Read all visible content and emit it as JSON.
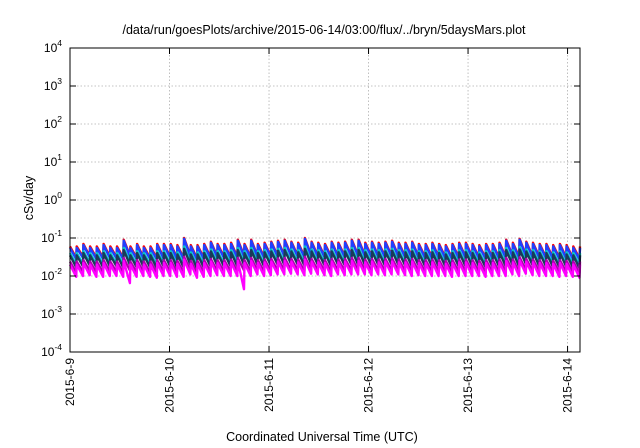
{
  "chart_data": {
    "type": "line",
    "title": "/data/run/goesPlots/archive/2015-06-14/03:00/flux/../bryn/5daysMars.plot",
    "xlabel": "Coordinated Universal Time (UTC)",
    "ylabel": "cSv/day",
    "x_range": [
      "2015-06-09T00:00",
      "2015-06-14T03:00"
    ],
    "x_ticks": [
      "2015-6-9",
      "2015-6-10",
      "2015-6-11",
      "2015-6-12",
      "2015-6-13",
      "2015-6-14"
    ],
    "y_scale": "log",
    "ylim": [
      0.0001,
      10000
    ],
    "y_ticks": [
      {
        "base": "10",
        "exp": "-4",
        "value": 0.0001
      },
      {
        "base": "10",
        "exp": "-3",
        "value": 0.001
      },
      {
        "base": "10",
        "exp": "-2",
        "value": 0.01
      },
      {
        "base": "10",
        "exp": "-1",
        "value": 0.1
      },
      {
        "base": "10",
        "exp": "0",
        "value": 1
      },
      {
        "base": "10",
        "exp": "1",
        "value": 10
      },
      {
        "base": "10",
        "exp": "2",
        "value": 100
      },
      {
        "base": "10",
        "exp": "3",
        "value": 1000
      },
      {
        "base": "10",
        "exp": "4",
        "value": 10000
      }
    ],
    "grid": true,
    "legend": "none",
    "series": [
      {
        "color": "#ff0000",
        "peaks": [
          0.06,
          0.06,
          0.07,
          0.06,
          0.06,
          0.07,
          0.06,
          0.06,
          0.09,
          0.06,
          0.07,
          0.06,
          0.06,
          0.07,
          0.07,
          0.07,
          0.065,
          0.1,
          0.065,
          0.065,
          0.07,
          0.08,
          0.07,
          0.07,
          0.075,
          0.09,
          0.07,
          0.09,
          0.07,
          0.075,
          0.08,
          0.085,
          0.09,
          0.08,
          0.075,
          0.1,
          0.08,
          0.075,
          0.07,
          0.08,
          0.075,
          0.08,
          0.09,
          0.09,
          0.075,
          0.08,
          0.075,
          0.08,
          0.085,
          0.075,
          0.075,
          0.08,
          0.07,
          0.07,
          0.075,
          0.07,
          0.065,
          0.07,
          0.075,
          0.075,
          0.07,
          0.065,
          0.07,
          0.07,
          0.075,
          0.09,
          0.075,
          0.095,
          0.08,
          0.075,
          0.07,
          0.07,
          0.065,
          0.07,
          0.065,
          0.06
        ],
        "troughs": [
          0.03,
          0.032,
          0.033,
          0.03,
          0.03,
          0.032,
          0.031,
          0.03,
          0.035,
          0.03,
          0.031,
          0.03,
          0.029,
          0.031,
          0.032,
          0.03,
          0.03,
          0.035,
          0.029,
          0.03,
          0.031,
          0.033,
          0.032,
          0.031,
          0.032,
          0.035,
          0.031,
          0.034,
          0.032,
          0.033,
          0.034,
          0.035,
          0.036,
          0.034,
          0.033,
          0.036,
          0.034,
          0.033,
          0.032,
          0.034,
          0.033,
          0.034,
          0.035,
          0.035,
          0.033,
          0.034,
          0.033,
          0.034,
          0.034,
          0.033,
          0.032,
          0.033,
          0.031,
          0.031,
          0.032,
          0.031,
          0.03,
          0.031,
          0.032,
          0.032,
          0.031,
          0.03,
          0.031,
          0.031,
          0.032,
          0.035,
          0.032,
          0.036,
          0.033,
          0.032,
          0.031,
          0.031,
          0.03,
          0.031,
          0.03,
          0.029
        ]
      },
      {
        "color": "#2040ff",
        "peaks": [
          0.055,
          0.055,
          0.065,
          0.055,
          0.055,
          0.065,
          0.055,
          0.055,
          0.085,
          0.055,
          0.065,
          0.055,
          0.055,
          0.065,
          0.065,
          0.065,
          0.06,
          0.095,
          0.06,
          0.06,
          0.065,
          0.075,
          0.065,
          0.065,
          0.07,
          0.085,
          0.065,
          0.085,
          0.065,
          0.07,
          0.075,
          0.08,
          0.085,
          0.075,
          0.07,
          0.095,
          0.075,
          0.07,
          0.065,
          0.075,
          0.07,
          0.075,
          0.085,
          0.085,
          0.07,
          0.075,
          0.07,
          0.075,
          0.08,
          0.07,
          0.07,
          0.075,
          0.065,
          0.065,
          0.07,
          0.065,
          0.06,
          0.065,
          0.07,
          0.07,
          0.065,
          0.06,
          0.065,
          0.065,
          0.07,
          0.085,
          0.07,
          0.09,
          0.075,
          0.07,
          0.065,
          0.065,
          0.06,
          0.065,
          0.06,
          0.055
        ],
        "troughs": [
          0.028,
          0.03,
          0.031,
          0.028,
          0.028,
          0.03,
          0.029,
          0.028,
          0.033,
          0.028,
          0.029,
          0.028,
          0.027,
          0.029,
          0.03,
          0.028,
          0.028,
          0.033,
          0.027,
          0.028,
          0.029,
          0.031,
          0.03,
          0.029,
          0.03,
          0.033,
          0.029,
          0.032,
          0.03,
          0.031,
          0.032,
          0.033,
          0.034,
          0.032,
          0.031,
          0.034,
          0.032,
          0.031,
          0.03,
          0.032,
          0.031,
          0.032,
          0.033,
          0.033,
          0.031,
          0.032,
          0.031,
          0.032,
          0.032,
          0.031,
          0.03,
          0.031,
          0.029,
          0.029,
          0.03,
          0.029,
          0.028,
          0.029,
          0.03,
          0.03,
          0.029,
          0.028,
          0.029,
          0.029,
          0.03,
          0.033,
          0.03,
          0.034,
          0.031,
          0.03,
          0.029,
          0.029,
          0.028,
          0.029,
          0.028,
          0.027
        ]
      },
      {
        "color": "#00c8c8",
        "peaks": [
          0.04,
          0.04,
          0.045,
          0.04,
          0.04,
          0.045,
          0.04,
          0.04,
          0.055,
          0.04,
          0.045,
          0.04,
          0.04,
          0.045,
          0.045,
          0.045,
          0.042,
          0.06,
          0.042,
          0.042,
          0.045,
          0.05,
          0.045,
          0.045,
          0.048,
          0.055,
          0.045,
          0.055,
          0.045,
          0.048,
          0.05,
          0.052,
          0.055,
          0.05,
          0.048,
          0.06,
          0.05,
          0.048,
          0.045,
          0.05,
          0.048,
          0.05,
          0.055,
          0.055,
          0.048,
          0.05,
          0.048,
          0.05,
          0.052,
          0.048,
          0.048,
          0.05,
          0.045,
          0.045,
          0.048,
          0.045,
          0.042,
          0.045,
          0.048,
          0.048,
          0.045,
          0.042,
          0.045,
          0.045,
          0.048,
          0.055,
          0.048,
          0.058,
          0.05,
          0.048,
          0.045,
          0.045,
          0.042,
          0.045,
          0.042,
          0.04
        ],
        "troughs": [
          0.02,
          0.021,
          0.022,
          0.02,
          0.02,
          0.021,
          0.021,
          0.02,
          0.023,
          0.02,
          0.021,
          0.02,
          0.019,
          0.021,
          0.021,
          0.02,
          0.02,
          0.023,
          0.019,
          0.02,
          0.021,
          0.022,
          0.021,
          0.021,
          0.021,
          0.023,
          0.021,
          0.023,
          0.021,
          0.022,
          0.023,
          0.023,
          0.024,
          0.023,
          0.022,
          0.024,
          0.023,
          0.022,
          0.021,
          0.023,
          0.022,
          0.023,
          0.023,
          0.023,
          0.022,
          0.023,
          0.022,
          0.023,
          0.023,
          0.022,
          0.021,
          0.022,
          0.021,
          0.021,
          0.021,
          0.021,
          0.02,
          0.021,
          0.021,
          0.021,
          0.021,
          0.02,
          0.021,
          0.021,
          0.021,
          0.023,
          0.021,
          0.024,
          0.022,
          0.021,
          0.021,
          0.021,
          0.02,
          0.021,
          0.02,
          0.019
        ]
      },
      {
        "color": "#1a3a5a",
        "peaks": [
          0.035,
          0.035,
          0.04,
          0.035,
          0.035,
          0.04,
          0.035,
          0.035,
          0.048,
          0.035,
          0.04,
          0.035,
          0.035,
          0.04,
          0.04,
          0.04,
          0.037,
          0.052,
          0.037,
          0.037,
          0.04,
          0.044,
          0.04,
          0.04,
          0.042,
          0.048,
          0.04,
          0.048,
          0.04,
          0.042,
          0.044,
          0.046,
          0.048,
          0.044,
          0.042,
          0.052,
          0.044,
          0.042,
          0.04,
          0.044,
          0.042,
          0.044,
          0.048,
          0.048,
          0.042,
          0.044,
          0.042,
          0.044,
          0.046,
          0.042,
          0.042,
          0.044,
          0.04,
          0.04,
          0.042,
          0.04,
          0.037,
          0.04,
          0.042,
          0.042,
          0.04,
          0.037,
          0.04,
          0.04,
          0.042,
          0.048,
          0.042,
          0.05,
          0.044,
          0.042,
          0.04,
          0.04,
          0.037,
          0.04,
          0.037,
          0.035
        ],
        "troughs": [
          0.017,
          0.018,
          0.019,
          0.017,
          0.017,
          0.018,
          0.018,
          0.017,
          0.02,
          0.017,
          0.018,
          0.017,
          0.016,
          0.018,
          0.018,
          0.017,
          0.017,
          0.02,
          0.016,
          0.017,
          0.018,
          0.019,
          0.018,
          0.018,
          0.018,
          0.02,
          0.018,
          0.02,
          0.018,
          0.019,
          0.02,
          0.02,
          0.021,
          0.02,
          0.019,
          0.021,
          0.02,
          0.019,
          0.018,
          0.02,
          0.019,
          0.02,
          0.02,
          0.02,
          0.019,
          0.02,
          0.019,
          0.02,
          0.02,
          0.019,
          0.018,
          0.019,
          0.018,
          0.018,
          0.018,
          0.018,
          0.017,
          0.018,
          0.018,
          0.018,
          0.018,
          0.017,
          0.018,
          0.018,
          0.018,
          0.02,
          0.018,
          0.021,
          0.019,
          0.018,
          0.018,
          0.018,
          0.017,
          0.018,
          0.017,
          0.016
        ]
      },
      {
        "color": "#b000b0",
        "peaks": [
          0.024,
          0.024,
          0.026,
          0.024,
          0.024,
          0.026,
          0.024,
          0.024,
          0.03,
          0.024,
          0.026,
          0.024,
          0.024,
          0.026,
          0.026,
          0.026,
          0.025,
          0.032,
          0.025,
          0.025,
          0.026,
          0.028,
          0.026,
          0.026,
          0.027,
          0.03,
          0.026,
          0.03,
          0.026,
          0.027,
          0.028,
          0.029,
          0.03,
          0.028,
          0.027,
          0.032,
          0.028,
          0.027,
          0.026,
          0.028,
          0.027,
          0.028,
          0.03,
          0.03,
          0.027,
          0.028,
          0.027,
          0.028,
          0.029,
          0.027,
          0.027,
          0.028,
          0.026,
          0.026,
          0.027,
          0.026,
          0.025,
          0.026,
          0.027,
          0.027,
          0.026,
          0.025,
          0.026,
          0.026,
          0.027,
          0.03,
          0.027,
          0.031,
          0.028,
          0.027,
          0.026,
          0.026,
          0.025,
          0.026,
          0.025,
          0.024
        ],
        "troughs": [
          0.0125,
          0.013,
          0.0135,
          0.0125,
          0.0125,
          0.013,
          0.013,
          0.0125,
          0.014,
          0.0125,
          0.013,
          0.0125,
          0.012,
          0.013,
          0.013,
          0.0125,
          0.0125,
          0.014,
          0.012,
          0.0125,
          0.013,
          0.0135,
          0.013,
          0.013,
          0.013,
          0.014,
          0.013,
          0.014,
          0.013,
          0.0135,
          0.014,
          0.014,
          0.0145,
          0.014,
          0.0135,
          0.0145,
          0.014,
          0.0135,
          0.013,
          0.014,
          0.0135,
          0.014,
          0.014,
          0.014,
          0.0135,
          0.014,
          0.0135,
          0.014,
          0.014,
          0.0135,
          0.013,
          0.0135,
          0.013,
          0.013,
          0.013,
          0.013,
          0.0125,
          0.013,
          0.013,
          0.013,
          0.013,
          0.0125,
          0.013,
          0.013,
          0.013,
          0.014,
          0.013,
          0.0145,
          0.0135,
          0.013,
          0.013,
          0.013,
          0.0125,
          0.013,
          0.0125,
          0.012
        ]
      },
      {
        "color": "#ff00ff",
        "peaks": [
          0.02,
          0.02,
          0.022,
          0.02,
          0.02,
          0.022,
          0.02,
          0.02,
          0.025,
          0.02,
          0.022,
          0.02,
          0.02,
          0.022,
          0.022,
          0.022,
          0.021,
          0.027,
          0.021,
          0.021,
          0.022,
          0.024,
          0.022,
          0.022,
          0.023,
          0.025,
          0.022,
          0.025,
          0.022,
          0.023,
          0.024,
          0.024,
          0.025,
          0.024,
          0.023,
          0.027,
          0.024,
          0.023,
          0.022,
          0.024,
          0.023,
          0.024,
          0.025,
          0.025,
          0.023,
          0.024,
          0.023,
          0.024,
          0.024,
          0.023,
          0.023,
          0.024,
          0.022,
          0.022,
          0.023,
          0.022,
          0.021,
          0.022,
          0.023,
          0.023,
          0.022,
          0.021,
          0.022,
          0.022,
          0.023,
          0.025,
          0.023,
          0.026,
          0.024,
          0.023,
          0.022,
          0.022,
          0.021,
          0.022,
          0.021,
          0.02
        ],
        "troughs": [
          0.0095,
          0.01,
          0.0105,
          0.0095,
          0.0095,
          0.01,
          0.01,
          0.0095,
          0.0065,
          0.0095,
          0.01,
          0.0095,
          0.009,
          0.01,
          0.01,
          0.0095,
          0.0095,
          0.011,
          0.009,
          0.0095,
          0.01,
          0.0105,
          0.01,
          0.01,
          0.01,
          0.0045,
          0.01,
          0.011,
          0.01,
          0.0105,
          0.011,
          0.011,
          0.0115,
          0.011,
          0.0105,
          0.0115,
          0.011,
          0.0105,
          0.01,
          0.011,
          0.0105,
          0.011,
          0.011,
          0.011,
          0.0105,
          0.011,
          0.0105,
          0.011,
          0.011,
          0.0105,
          0.01,
          0.0105,
          0.01,
          0.01,
          0.01,
          0.01,
          0.0095,
          0.01,
          0.01,
          0.01,
          0.01,
          0.0095,
          0.01,
          0.01,
          0.01,
          0.011,
          0.01,
          0.0115,
          0.0105,
          0.01,
          0.01,
          0.01,
          0.0095,
          0.01,
          0.0095,
          0.009
        ]
      }
    ]
  }
}
